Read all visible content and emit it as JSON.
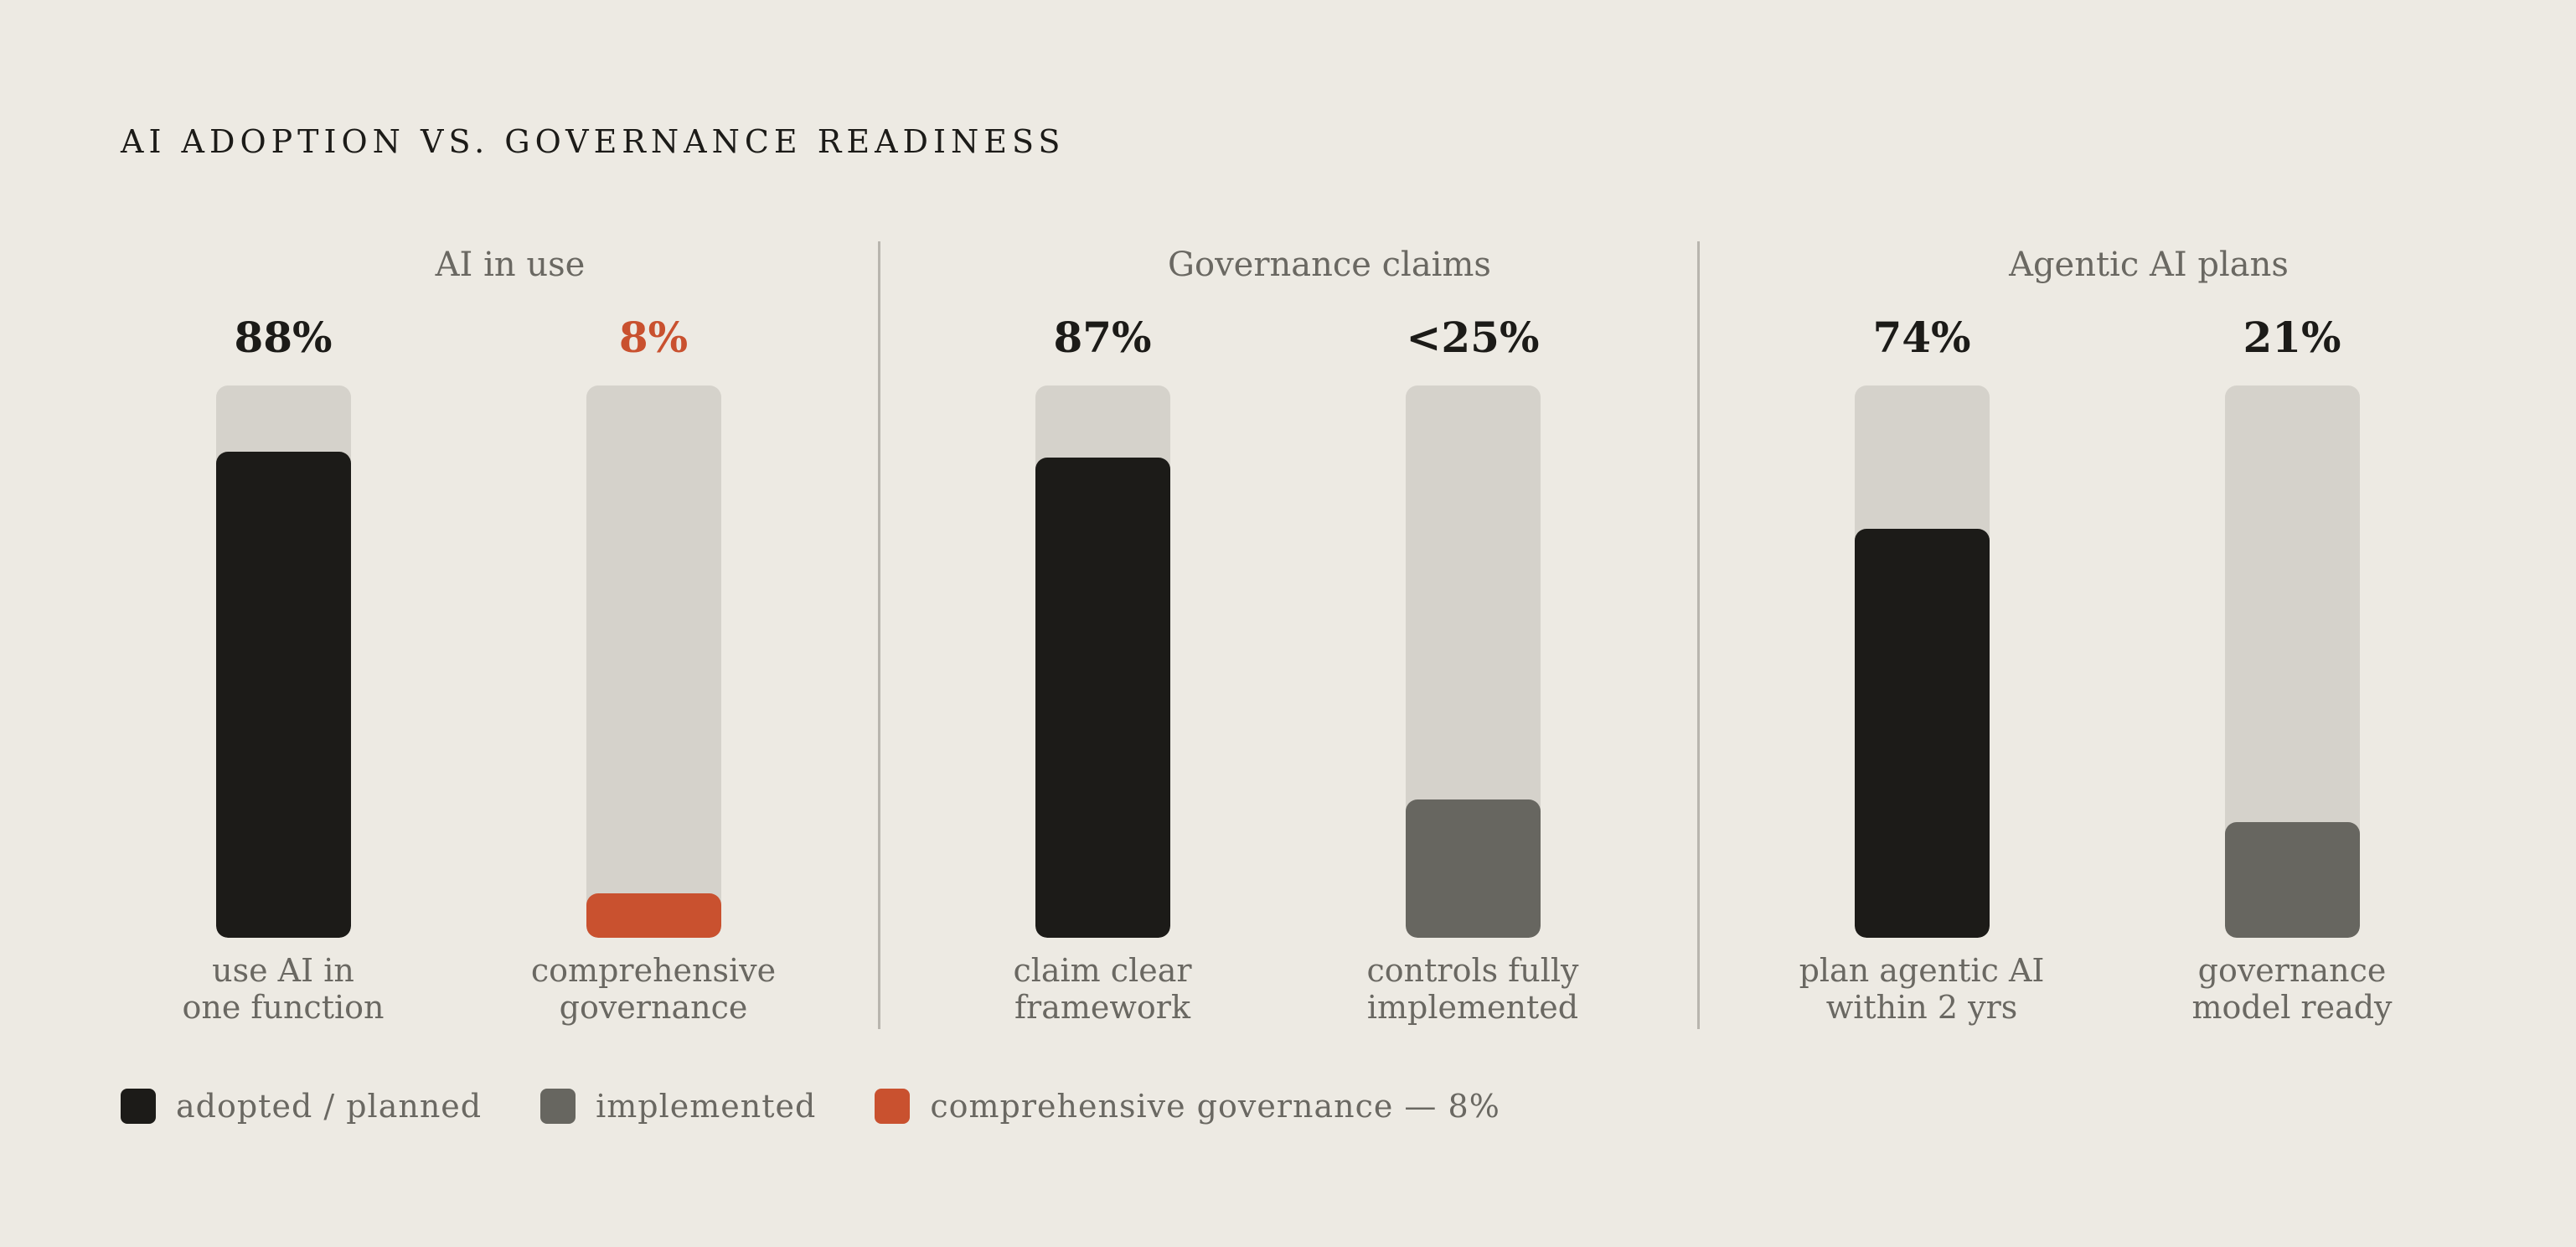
{
  "title": "AI ADOPTION VS. GOVERNANCE READINESS",
  "colors": {
    "background": "#edeae3",
    "track": "#d5d2cb",
    "adopted": "#1c1b18",
    "implemented": "#676660",
    "accent": "#c9512f",
    "muted_text": "#6a6862"
  },
  "legend": [
    {
      "label": "adopted / planned",
      "color": "#1c1b18"
    },
    {
      "label": "implemented",
      "color": "#676660"
    },
    {
      "label": "comprehensive governance — 8%",
      "color": "#c9512f"
    }
  ],
  "chart_data": {
    "type": "bar",
    "ylim": [
      0,
      100
    ],
    "groups": [
      {
        "title": "AI in use",
        "bars": [
          {
            "value": 88,
            "value_label": "88%",
            "label_lines": [
              "use AI in",
              "one function"
            ],
            "series": "adopted / planned",
            "color": "#1c1b18"
          },
          {
            "value": 8,
            "value_label": "8%",
            "label_lines": [
              "comprehensive",
              "governance"
            ],
            "series": "comprehensive governance — 8%",
            "color": "#c9512f",
            "accent": true
          }
        ]
      },
      {
        "title": "Governance claims",
        "bars": [
          {
            "value": 87,
            "value_label": "87%",
            "label_lines": [
              "claim clear",
              "framework"
            ],
            "series": "adopted / planned",
            "color": "#1c1b18"
          },
          {
            "value": 25,
            "value_label": "<25%",
            "label_lines": [
              "controls fully",
              "implemented"
            ],
            "series": "implemented",
            "color": "#676660"
          }
        ]
      },
      {
        "title": "Agentic AI plans",
        "bars": [
          {
            "value": 74,
            "value_label": "74%",
            "label_lines": [
              "plan agentic AI",
              "within 2 yrs"
            ],
            "series": "adopted / planned",
            "color": "#1c1b18"
          },
          {
            "value": 21,
            "value_label": "21%",
            "label_lines": [
              "governance",
              "model ready"
            ],
            "series": "implemented",
            "color": "#676660"
          }
        ]
      }
    ]
  }
}
